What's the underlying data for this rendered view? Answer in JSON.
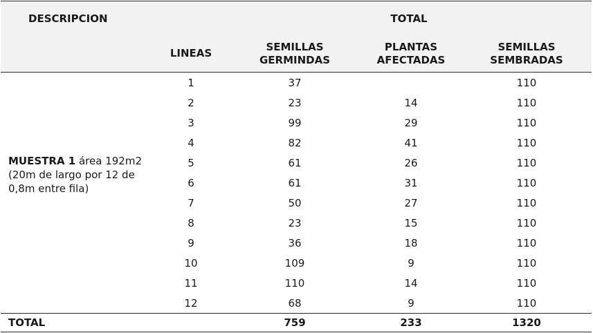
{
  "header": {
    "descripcion": "DESCRIPCION",
    "total": "TOTAL",
    "lineas": "LINEAS",
    "semillas_germindas": "SEMILLAS GERMINDAS",
    "plantas_afectadas": "PLANTAS AFECTADAS",
    "semillas_sembradas": "SEMILLAS SEMBRADAS"
  },
  "muestra": {
    "label": "MUESTRA 1",
    "text": " área  192m2 (20m de largo por 12 de 0,8m entre fila)"
  },
  "rows": [
    {
      "linea": "1",
      "sg": "37",
      "pa": "",
      "ss": "110"
    },
    {
      "linea": "2",
      "sg": "23",
      "pa": "14",
      "ss": "110"
    },
    {
      "linea": "3",
      "sg": "99",
      "pa": "29",
      "ss": "110"
    },
    {
      "linea": "4",
      "sg": "82",
      "pa": "41",
      "ss": "110"
    },
    {
      "linea": "5",
      "sg": "61",
      "pa": "26",
      "ss": "110"
    },
    {
      "linea": "6",
      "sg": "61",
      "pa": "31",
      "ss": "110"
    },
    {
      "linea": "7",
      "sg": "50",
      "pa": "27",
      "ss": "110"
    },
    {
      "linea": "8",
      "sg": "23",
      "pa": "15",
      "ss": "110"
    },
    {
      "linea": "9",
      "sg": "36",
      "pa": "18",
      "ss": "110"
    },
    {
      "linea": "10",
      "sg": "109",
      "pa": "9",
      "ss": "110"
    },
    {
      "linea": "11",
      "sg": "110",
      "pa": "14",
      "ss": "110"
    },
    {
      "linea": "12",
      "sg": "68",
      "pa": "9",
      "ss": "110"
    }
  ],
  "footer": {
    "label": "TOTAL",
    "sg": "759",
    "pa": "233",
    "ss": "1320"
  }
}
